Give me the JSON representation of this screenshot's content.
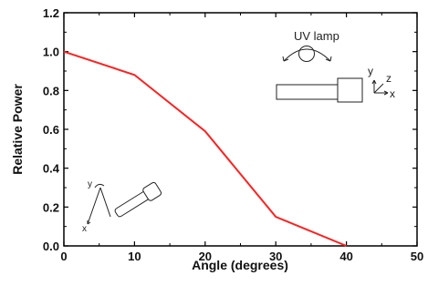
{
  "chart_data": {
    "type": "line",
    "xlabel": "Angle (degrees)",
    "ylabel": "Relative Power",
    "xlim": [
      0,
      50
    ],
    "ylim": [
      0,
      1.2
    ],
    "x_ticks": [
      "0",
      "10",
      "20",
      "30",
      "40",
      "50"
    ],
    "y_ticks": [
      "0.0",
      "0.2",
      "0.4",
      "0.6",
      "0.8",
      "1.0",
      "1.2"
    ],
    "grid": false,
    "series": [
      {
        "x": [
          0,
          10,
          20,
          30,
          40
        ],
        "y": [
          1.0,
          0.88,
          0.59,
          0.15,
          0.0
        ],
        "color": "#ff2020"
      }
    ],
    "annotations": {
      "lamp_label": "UV lamp",
      "axis_right": {
        "y": "y",
        "z": "z",
        "x": "x"
      },
      "axis_left": {
        "y": "y",
        "x": "x"
      }
    }
  }
}
